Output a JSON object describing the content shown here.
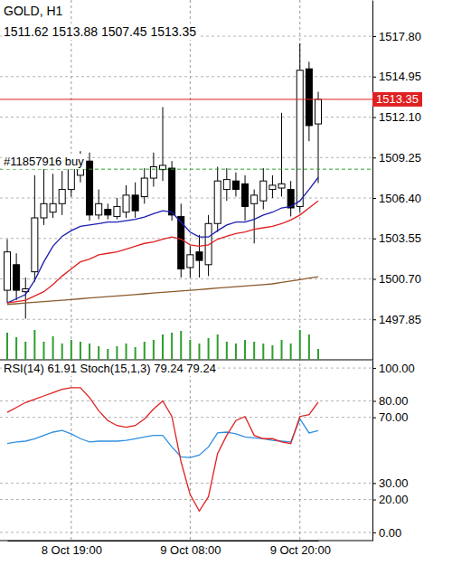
{
  "chart_data": [
    {
      "type": "candlestick",
      "title": "GOLD, H1",
      "subtitle": "1511.62 1513.88 1507.45 1513.35",
      "categories": [
        null,
        null,
        null,
        null,
        null,
        null,
        null,
        null,
        null,
        null,
        null,
        null,
        null,
        null,
        null,
        null,
        null,
        null,
        null,
        null,
        null,
        null,
        null,
        null,
        null,
        null,
        null,
        null,
        null,
        null,
        null,
        null,
        null,
        null,
        null
      ],
      "tick_labels": "y",
      "open": [
        1499.9,
        1501.7,
        1499.8,
        1501.2,
        1505.0,
        1505.4,
        1506.0,
        1507.0,
        1508.0,
        1509.0,
        1505.2,
        1505.6,
        1505.1,
        1505.4,
        1506.6,
        1506.5,
        1507.8,
        1508.4,
        1508.5,
        1505.1,
        1501.5,
        1502.6,
        1501.7,
        1504.6,
        1507.0,
        1507.6,
        1507.4,
        1506.0,
        1506.2,
        1507.0,
        1507.1,
        1507.0,
        1505.8,
        1515.5,
        1511.62
      ],
      "high": [
        1503.5,
        1502.5,
        1500.8,
        1508.0,
        1508.5,
        1508.1,
        1508.3,
        1509.5,
        1509.7,
        1509.6,
        1507.0,
        1506.0,
        1506.4,
        1507.3,
        1507.5,
        1508.5,
        1509.6,
        1512.8,
        1509.0,
        1506.0,
        1503.0,
        1503.8,
        1505.2,
        1508.6,
        1508.5,
        1508.2,
        1508.0,
        1507.0,
        1508.5,
        1508.0,
        1512.4,
        1507.6,
        1517.3,
        1516.0,
        1513.88
      ],
      "low": [
        1499.0,
        1499.2,
        1497.9,
        1500.5,
        1504.5,
        1505.0,
        1505.2,
        1506.5,
        1507.5,
        1504.8,
        1504.9,
        1504.9,
        1504.9,
        1505.0,
        1505.0,
        1506.0,
        1507.2,
        1507.6,
        1504.8,
        1500.8,
        1500.8,
        1500.8,
        1500.9,
        1504.0,
        1506.2,
        1506.5,
        1504.8,
        1503.2,
        1505.6,
        1506.4,
        1506.5,
        1505.1,
        1505.4,
        1510.4,
        1507.45
      ],
      "close": [
        1502.6,
        1499.9,
        1500.0,
        1505.0,
        1506.0,
        1506.0,
        1507.0,
        1508.8,
        1509.0,
        1505.2,
        1506.0,
        1505.2,
        1505.8,
        1506.6,
        1505.5,
        1507.8,
        1508.6,
        1508.7,
        1505.2,
        1501.4,
        1502.4,
        1502.0,
        1504.6,
        1507.6,
        1507.7,
        1507.0,
        1505.8,
        1506.6,
        1507.6,
        1507.3,
        1507.4,
        1505.7,
        1515.4,
        1511.5,
        1513.35
      ],
      "series": [
        {
          "color": "#1c1cb0",
          "values": [
            1499.0,
            1499.3,
            1499.6,
            1500.6,
            1501.9,
            1503.0,
            1503.7,
            1504.1,
            1504.4,
            1504.5,
            1504.6,
            1504.7,
            1504.7,
            1504.8,
            1504.9,
            1505.05,
            1505.3,
            1505.5,
            1505.4,
            1504.7,
            1504.0,
            1503.65,
            1503.65,
            1504.1,
            1504.5,
            1504.7,
            1504.7,
            1504.9,
            1505.2,
            1505.4,
            1505.7,
            1505.8,
            1506.2,
            1507.0,
            1507.85
          ]
        },
        {
          "color": "#e02020",
          "values": [
            1499.0,
            1499.1,
            1499.2,
            1499.5,
            1499.8,
            1500.3,
            1500.9,
            1501.4,
            1501.9,
            1502.1,
            1502.4,
            1502.5,
            1502.6,
            1502.8,
            1503.0,
            1503.2,
            1503.3,
            1503.5,
            1503.65,
            1503.5,
            1503.1,
            1503.0,
            1503.1,
            1503.5,
            1503.7,
            1503.9,
            1504.0,
            1504.2,
            1504.3,
            1504.4,
            1504.6,
            1504.85,
            1505.2,
            1505.7,
            1506.2
          ]
        },
        {
          "color": "#8b5a2b",
          "values": [
            1498.9,
            1498.95,
            1499.0,
            1499.05,
            1499.1,
            1499.15,
            1499.2,
            1499.25,
            1499.3,
            1499.35,
            1499.4,
            1499.45,
            1499.5,
            1499.55,
            1499.6,
            1499.65,
            1499.7,
            1499.75,
            1499.8,
            1499.85,
            1499.9,
            1499.95,
            1500.0,
            1500.05,
            1500.1,
            1500.15,
            1500.2,
            1500.25,
            1500.3,
            1500.35,
            1500.45,
            1500.55,
            1500.65,
            1500.75,
            1500.85
          ]
        }
      ],
      "volume": [
        3000,
        2500,
        2000,
        3300,
        2000,
        2600,
        1800,
        2200,
        2000,
        1800,
        1500,
        1200,
        1500,
        1800,
        1400,
        2000,
        2200,
        2800,
        3000,
        3200,
        2200,
        1800,
        2400,
        2800,
        2000,
        1800,
        2200,
        2000,
        1800,
        1600,
        2200,
        1800,
        3300,
        2800,
        1200
      ],
      "volume_lim": [
        0,
        4000
      ],
      "lines": [
        {
          "value": 1508.43,
          "label": "#11857916 buy",
          "color": "#2e9e2e",
          "line_style": "dashed"
        },
        {
          "value": 1513.35,
          "label": "1513.35",
          "color": "#e02020",
          "line_style": "solid"
        }
      ],
      "ylim": [
        1495.0,
        1520.35
      ],
      "yticks": [
        {
          "value": 1517.8,
          "label": "1517.80"
        },
        1514.95,
        {
          "value": 1512.1,
          "label": "1512.10"
        },
        1509.25,
        {
          "value": 1506.4,
          "label": "1506.40"
        },
        1503.55,
        {
          "value": 1500.7,
          "label": "1500.70"
        },
        1497.85
      ],
      "grid": true
    },
    {
      "type": "line",
      "title": "RSI(14) 61.91 Stoch(15,1,3) 79.24 79.24",
      "categories": [
        null,
        null,
        null,
        null,
        null,
        null,
        null,
        "8 Oct 19:00",
        null,
        null,
        null,
        null,
        null,
        null,
        null,
        null,
        null,
        null,
        null,
        null,
        "9 Oct 08:00",
        null,
        null,
        null,
        null,
        null,
        null,
        null,
        null,
        null,
        null,
        null,
        "9 Oct 20:00",
        null,
        null
      ],
      "series": [
        {
          "color": "#2f8fe0",
          "values": [
            54,
            55,
            55.5,
            57,
            59,
            61,
            62,
            60,
            57,
            55,
            55.5,
            55.5,
            55.5,
            56,
            57,
            58,
            59,
            59,
            52,
            46,
            45.5,
            47,
            52,
            60.5,
            61,
            60,
            58,
            57.5,
            57,
            56,
            55.5,
            55,
            69,
            60.5,
            61.91
          ]
        },
        {
          "color": "#e02020",
          "values": [
            73,
            76,
            79,
            81,
            83,
            85,
            87,
            88,
            88,
            82,
            74,
            68,
            65,
            64,
            65,
            69,
            75,
            80,
            70.5,
            43,
            23,
            13,
            21.7,
            48,
            59,
            68,
            70.5,
            59,
            57,
            57,
            55,
            54,
            70.5,
            71.6,
            79.24
          ]
        }
      ],
      "ylim": [
        -5,
        105
      ],
      "yticks": [
        {
          "value": 100,
          "label": "100.00"
        },
        {
          "value": 80,
          "label": "80.00"
        },
        {
          "value": 70,
          "label": "70.00"
        },
        {
          "value": 30,
          "label": "30.00"
        },
        {
          "value": 20,
          "label": "20.00"
        },
        {
          "value": 0,
          "label": "0.00"
        }
      ],
      "grid": true
    }
  ]
}
